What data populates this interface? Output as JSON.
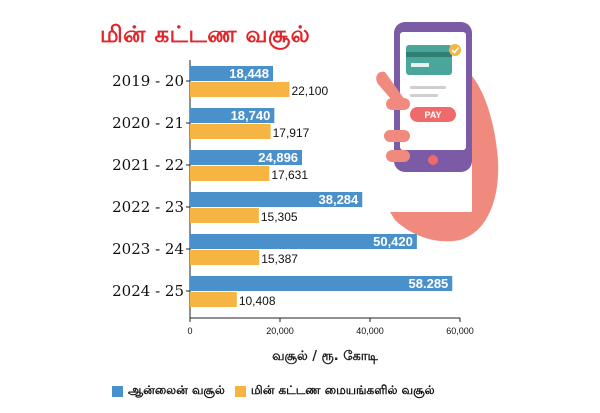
{
  "title": "மின் கட்டண வசூல்",
  "colors": {
    "online": "#4a90cb",
    "center": "#f6b443",
    "title": "#e0262b"
  },
  "chart_data": {
    "type": "bar",
    "orientation": "horizontal",
    "title": "மின் கட்டண வசூல்",
    "xlabel": "வசூல் / ரூ. கோடி",
    "categories": [
      "2019 - 20",
      "2020 - 21",
      "2021 - 22",
      "2022 - 23",
      "2023 - 24",
      "2024 - 25"
    ],
    "series": [
      {
        "name": "ஆன்லைன் வசூல்",
        "values": [
          18448,
          18740,
          24896,
          38284,
          50420,
          58285
        ],
        "labels": [
          "18,448",
          "18,740",
          "24,896",
          "38,284",
          "50,420",
          "58.285"
        ]
      },
      {
        "name": "மின் கட்டண மையங்களில் வசூல்",
        "values": [
          22100,
          17917,
          17631,
          15305,
          15387,
          10408
        ],
        "labels": [
          "22,100",
          "17,917",
          "17,631",
          "15,305",
          "15,387",
          "10,408"
        ]
      }
    ],
    "xlim": [
      0,
      60000
    ],
    "xticks": [
      0,
      20000,
      40000,
      60000
    ],
    "xtick_labels": [
      "0",
      "20,000",
      "40,000",
      "60,000"
    ],
    "grid": false,
    "legend": "bottom"
  },
  "illustration": {
    "pay_button_label": "PAY",
    "icons": [
      "phone-icon",
      "hand-icon",
      "credit-card-icon"
    ]
  }
}
